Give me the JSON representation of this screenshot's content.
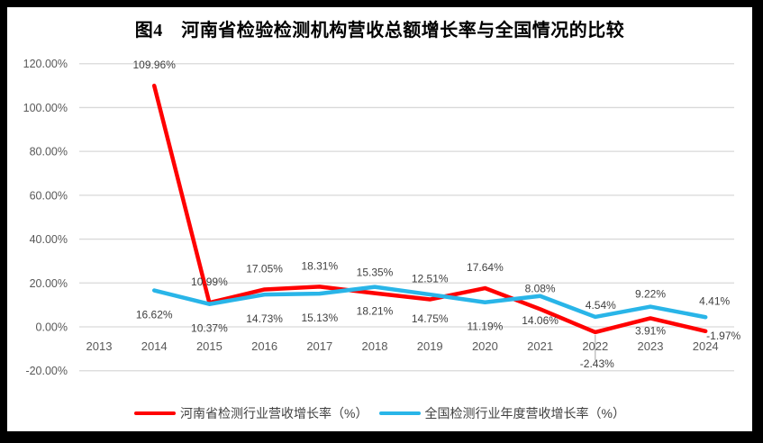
{
  "chart": {
    "title": "图4　河南省检验检测机构营收总额增长率与全国情况的比较"
  },
  "chart_data": {
    "type": "line",
    "title": "图4　河南省检验检测机构营收总额增长率与全国情况的比较",
    "categories": [
      "2013",
      "2014",
      "2015",
      "2016",
      "2017",
      "2018",
      "2019",
      "2020",
      "2021",
      "2022",
      "2023",
      "2024"
    ],
    "series": [
      {
        "name": "河南省检测行业营收增长率（%）",
        "color": "#FF0000",
        "values": [
          null,
          109.96,
          10.99,
          17.05,
          18.31,
          15.35,
          12.51,
          17.64,
          8.08,
          -2.43,
          3.91,
          -1.97
        ]
      },
      {
        "name": "全国检测行业年度营收增长率（%）",
        "color": "#29B5E8",
        "values": [
          null,
          16.62,
          10.37,
          14.73,
          15.13,
          18.21,
          14.75,
          11.19,
          14.06,
          4.54,
          9.22,
          4.41
        ]
      }
    ],
    "ylim": [
      -20,
      120
    ],
    "ytick_step": 20,
    "yticks": [
      "120.00%",
      "100.00%",
      "80.00%",
      "60.00%",
      "40.00%",
      "20.00%",
      "0.00%",
      "-20.00%"
    ],
    "value_label_format": "0.00%",
    "grid": "horizontal",
    "legend_position": "bottom",
    "colors": {
      "gridline": "#D9D9D9",
      "tick_text": "#595959",
      "data_label_text": "#404040",
      "leader_line": "#A6A6A6",
      "plot_background": "#FFFFFF",
      "page_background": "#000000"
    }
  }
}
